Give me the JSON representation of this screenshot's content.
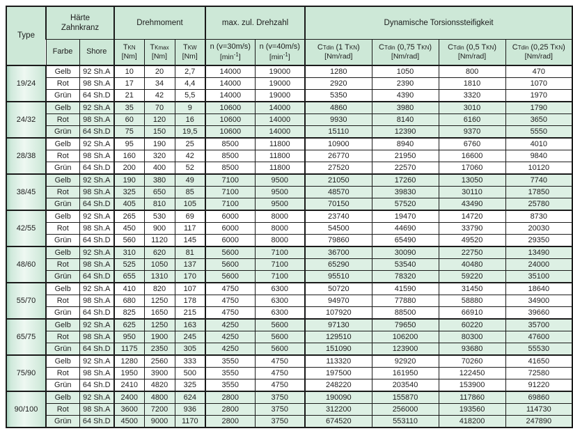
{
  "header": {
    "type_label": "Type",
    "haerte_line1": "Härte",
    "haerte_line2": "Zahnkranz",
    "farbe": "Farbe",
    "shore": "Shore",
    "drehmoment": "Drehmoment",
    "drehzahl": "max. zul. Drehzahl",
    "torsion": "Dynamische Torsionssteifigkeit",
    "torque_cols": [
      {
        "rich": [
          {
            "t": "T"
          },
          {
            "t": "KN",
            "s": true
          }
        ],
        "unit": "[Nm]"
      },
      {
        "rich": [
          {
            "t": "T"
          },
          {
            "t": "Kmax",
            "s": true
          }
        ],
        "unit": "[Nm]"
      },
      {
        "rich": [
          {
            "t": "T"
          },
          {
            "t": "KW",
            "s": true
          }
        ],
        "unit": "[Nm]"
      }
    ],
    "speed_cols": [
      {
        "line1": "n (v=30m/s)",
        "unit_rich": [
          {
            "t": "[min"
          },
          {
            "t": "-1",
            "p": true
          },
          {
            "t": "]"
          }
        ]
      },
      {
        "line1": "n (v=40m/s)",
        "unit_rich": [
          {
            "t": "[min"
          },
          {
            "t": "-1",
            "p": true
          },
          {
            "t": "]"
          }
        ]
      }
    ],
    "stiffness_cols": [
      {
        "rich": [
          {
            "t": "C"
          },
          {
            "t": "Tdin",
            "s": true
          },
          {
            "t": " (1 T"
          },
          {
            "t": "KN",
            "s": true
          },
          {
            "t": ")"
          }
        ],
        "unit": "[Nm/rad]"
      },
      {
        "rich": [
          {
            "t": "C"
          },
          {
            "t": "Tdin",
            "s": true
          },
          {
            "t": "  (0,75 T"
          },
          {
            "t": "KN",
            "s": true
          },
          {
            "t": ")"
          }
        ],
        "unit": "[Nm/rad]"
      },
      {
        "rich": [
          {
            "t": "C"
          },
          {
            "t": "Tdin",
            "s": true
          },
          {
            "t": "  (0,5 T"
          },
          {
            "t": "KN",
            "s": true
          },
          {
            "t": ")"
          }
        ],
        "unit": "[Nm/rad]"
      },
      {
        "rich": [
          {
            "t": "C"
          },
          {
            "t": "Tdin",
            "s": true
          },
          {
            "t": " (0,25 T"
          },
          {
            "t": "KN",
            "s": true
          },
          {
            "t": ")"
          }
        ],
        "unit": "[Nm/rad]"
      }
    ]
  },
  "groups": [
    {
      "type": "19/24",
      "green": false,
      "rows": [
        {
          "farbe": "Gelb",
          "shore": "92 Sh.A",
          "tkn": "10",
          "tkmax": "20",
          "tkw": "2,7",
          "n30": "14000",
          "n40": "19000",
          "c1": "1280",
          "c2": "1050",
          "c3": "800",
          "c4": "470"
        },
        {
          "farbe": "Rot",
          "shore": "98 Sh.A",
          "tkn": "17",
          "tkmax": "34",
          "tkw": "4,4",
          "n30": "14000",
          "n40": "19000",
          "c1": "2920",
          "c2": "2390",
          "c3": "1810",
          "c4": "1070"
        },
        {
          "farbe": "Grün",
          "shore": "64 Sh.D",
          "tkn": "21",
          "tkmax": "42",
          "tkw": "5,5",
          "n30": "14000",
          "n40": "19000",
          "c1": "5350",
          "c2": "4390",
          "c3": "3320",
          "c4": "1970"
        }
      ]
    },
    {
      "type": "24/32",
      "green": true,
      "rows": [
        {
          "farbe": "Gelb",
          "shore": "92 Sh.A",
          "tkn": "35",
          "tkmax": "70",
          "tkw": "9",
          "n30": "10600",
          "n40": "14000",
          "c1": "4860",
          "c2": "3980",
          "c3": "3010",
          "c4": "1790"
        },
        {
          "farbe": "Rot",
          "shore": "98 Sh.A",
          "tkn": "60",
          "tkmax": "120",
          "tkw": "16",
          "n30": "10600",
          "n40": "14000",
          "c1": "9930",
          "c2": "8140",
          "c3": "6160",
          "c4": "3650"
        },
        {
          "farbe": "Grün",
          "shore": "64 Sh.D",
          "tkn": "75",
          "tkmax": "150",
          "tkw": "19,5",
          "n30": "10600",
          "n40": "14000",
          "c1": "15110",
          "c2": "12390",
          "c3": "9370",
          "c4": "5550"
        }
      ]
    },
    {
      "type": "28/38",
      "green": false,
      "rows": [
        {
          "farbe": "Gelb",
          "shore": "92 Sh.A",
          "tkn": "95",
          "tkmax": "190",
          "tkw": "25",
          "n30": "8500",
          "n40": "11800",
          "c1": "10900",
          "c2": "8940",
          "c3": "6760",
          "c4": "4010"
        },
        {
          "farbe": "Rot",
          "shore": "98 Sh.A",
          "tkn": "160",
          "tkmax": "320",
          "tkw": "42",
          "n30": "8500",
          "n40": "11800",
          "c1": "26770",
          "c2": "21950",
          "c3": "16600",
          "c4": "9840"
        },
        {
          "farbe": "Grün",
          "shore": "64 Sh.D",
          "tkn": "200",
          "tkmax": "400",
          "tkw": "52",
          "n30": "8500",
          "n40": "11800",
          "c1": "27520",
          "c2": "22570",
          "c3": "17060",
          "c4": "10120"
        }
      ]
    },
    {
      "type": "38/45",
      "green": true,
      "rows": [
        {
          "farbe": "Gelb",
          "shore": "92 Sh.A",
          "tkn": "190",
          "tkmax": "380",
          "tkw": "49",
          "n30": "7100",
          "n40": "9500",
          "c1": "21050",
          "c2": "17260",
          "c3": "13050",
          "c4": "7740"
        },
        {
          "farbe": "Rot",
          "shore": "98 Sh.A",
          "tkn": "325",
          "tkmax": "650",
          "tkw": "85",
          "n30": "7100",
          "n40": "9500",
          "c1": "48570",
          "c2": "39830",
          "c3": "30110",
          "c4": "17850"
        },
        {
          "farbe": "Grün",
          "shore": "64 Sh.D",
          "tkn": "405",
          "tkmax": "810",
          "tkw": "105",
          "n30": "7100",
          "n40": "9500",
          "c1": "70150",
          "c2": "57520",
          "c3": "43490",
          "c4": "25780"
        }
      ]
    },
    {
      "type": "42/55",
      "green": false,
      "rows": [
        {
          "farbe": "Gelb",
          "shore": "92 Sh.A",
          "tkn": "265",
          "tkmax": "530",
          "tkw": "69",
          "n30": "6000",
          "n40": "8000",
          "c1": "23740",
          "c2": "19470",
          "c3": "14720",
          "c4": "8730"
        },
        {
          "farbe": "Rot",
          "shore": "98 Sh.A",
          "tkn": "450",
          "tkmax": "900",
          "tkw": "117",
          "n30": "6000",
          "n40": "8000",
          "c1": "54500",
          "c2": "44690",
          "c3": "33790",
          "c4": "20030"
        },
        {
          "farbe": "Grün",
          "shore": "64 Sh.D",
          "tkn": "560",
          "tkmax": "1120",
          "tkw": "145",
          "n30": "6000",
          "n40": "8000",
          "c1": "79860",
          "c2": "65490",
          "c3": "49520",
          "c4": "29350"
        }
      ]
    },
    {
      "type": "48/60",
      "green": true,
      "rows": [
        {
          "farbe": "Gelb",
          "shore": "92 Sh.A",
          "tkn": "310",
          "tkmax": "620",
          "tkw": "81",
          "n30": "5600",
          "n40": "7100",
          "c1": "36700",
          "c2": "30090",
          "c3": "22750",
          "c4": "13490"
        },
        {
          "farbe": "Rot",
          "shore": "98 Sh.A",
          "tkn": "525",
          "tkmax": "1050",
          "tkw": "137",
          "n30": "5600",
          "n40": "7100",
          "c1": "65290",
          "c2": "53540",
          "c3": "40480",
          "c4": "24000"
        },
        {
          "farbe": "Grün",
          "shore": "64 Sh.D",
          "tkn": "655",
          "tkmax": "1310",
          "tkw": "170",
          "n30": "5600",
          "n40": "7100",
          "c1": "95510",
          "c2": "78320",
          "c3": "59220",
          "c4": "35100"
        }
      ]
    },
    {
      "type": "55/70",
      "green": false,
      "rows": [
        {
          "farbe": "Gelb",
          "shore": "92 Sh.A",
          "tkn": "410",
          "tkmax": "820",
          "tkw": "107",
          "n30": "4750",
          "n40": "6300",
          "c1": "50720",
          "c2": "41590",
          "c3": "31450",
          "c4": "18640"
        },
        {
          "farbe": "Rot",
          "shore": "98 Sh.A",
          "tkn": "680",
          "tkmax": "1250",
          "tkw": "178",
          "n30": "4750",
          "n40": "6300",
          "c1": "94970",
          "c2": "77880",
          "c3": "58880",
          "c4": "34900"
        },
        {
          "farbe": "Grün",
          "shore": "64 Sh.D",
          "tkn": "825",
          "tkmax": "1650",
          "tkw": "215",
          "n30": "4750",
          "n40": "6300",
          "c1": "107920",
          "c2": "88500",
          "c3": "66910",
          "c4": "39660"
        }
      ]
    },
    {
      "type": "65/75",
      "green": true,
      "rows": [
        {
          "farbe": "Gelb",
          "shore": "92 Sh.A",
          "tkn": "625",
          "tkmax": "1250",
          "tkw": "163",
          "n30": "4250",
          "n40": "5600",
          "c1": "97130",
          "c2": "79650",
          "c3": "60220",
          "c4": "35700"
        },
        {
          "farbe": "Rot",
          "shore": "98 Sh.A",
          "tkn": "950",
          "tkmax": "1900",
          "tkw": "245",
          "n30": "4250",
          "n40": "5600",
          "c1": "129510",
          "c2": "106200",
          "c3": "80300",
          "c4": "47600"
        },
        {
          "farbe": "Grün",
          "shore": "64 Sh.D",
          "tkn": "1175",
          "tkmax": "2350",
          "tkw": "305",
          "n30": "4250",
          "n40": "5600",
          "c1": "151090",
          "c2": "123900",
          "c3": "93680",
          "c4": "55530"
        }
      ]
    },
    {
      "type": "75/90",
      "green": false,
      "rows": [
        {
          "farbe": "Gelb",
          "shore": "92 Sh.A",
          "tkn": "1280",
          "tkmax": "2560",
          "tkw": "333",
          "n30": "3550",
          "n40": "4750",
          "c1": "113320",
          "c2": "92920",
          "c3": "70260",
          "c4": "41650"
        },
        {
          "farbe": "Rot",
          "shore": "98 Sh.A",
          "tkn": "1950",
          "tkmax": "3900",
          "tkw": "500",
          "n30": "3550",
          "n40": "4750",
          "c1": "197500",
          "c2": "161950",
          "c3": "122450",
          "c4": "72580"
        },
        {
          "farbe": "Grün",
          "shore": "64 Sh.D",
          "tkn": "2410",
          "tkmax": "4820",
          "tkw": "325",
          "n30": "3550",
          "n40": "4750",
          "c1": "248220",
          "c2": "203540",
          "c3": "153900",
          "c4": "91220"
        }
      ]
    },
    {
      "type": "90/100",
      "green": true,
      "rows": [
        {
          "farbe": "Gelb",
          "shore": "92 Sh.A",
          "tkn": "2400",
          "tkmax": "4800",
          "tkw": "624",
          "n30": "2800",
          "n40": "3750",
          "c1": "190090",
          "c2": "155870",
          "c3": "117860",
          "c4": "69860"
        },
        {
          "farbe": "Rot",
          "shore": "98 Sh.A",
          "tkn": "3600",
          "tkmax": "7200",
          "tkw": "936",
          "n30": "2800",
          "n40": "3750",
          "c1": "312200",
          "c2": "256000",
          "c3": "193560",
          "c4": "114730"
        },
        {
          "farbe": "Grün",
          "shore": "64 Sh.D",
          "tkn": "4500",
          "tkmax": "9000",
          "tkw": "1170",
          "n30": "2800",
          "n40": "3750",
          "c1": "674520",
          "c2": "553110",
          "c3": "418200",
          "c4": "247890"
        }
      ]
    }
  ]
}
